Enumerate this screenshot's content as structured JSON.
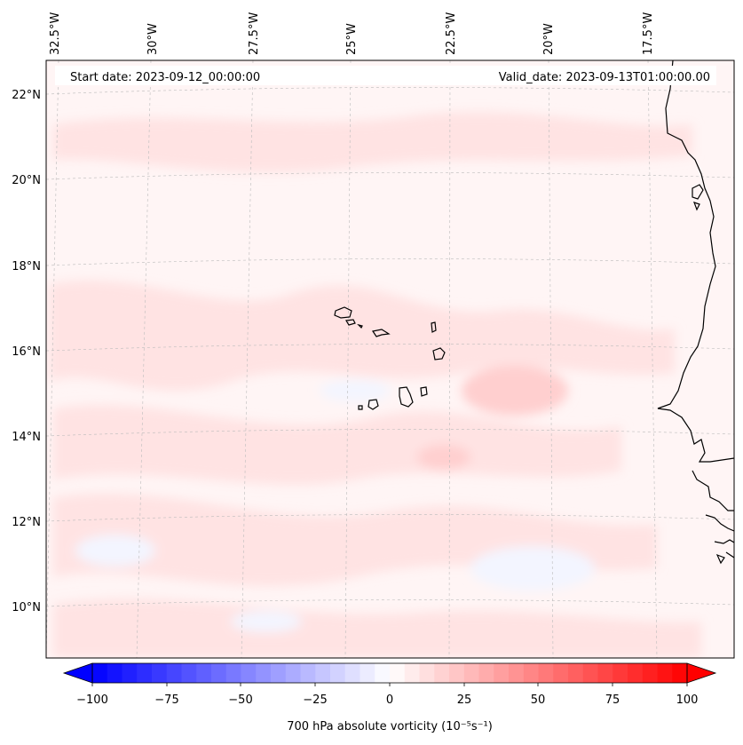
{
  "header": {
    "start_date": "Start date: 2023-09-12_00:00:00",
    "valid_date": "Valid_date: 2023-09-13T01:00:00.00"
  },
  "longitude_labels": [
    "32.5°W",
    "30°W",
    "27.5°W",
    "25°W",
    "22.5°W",
    "20°W",
    "17.5°W"
  ],
  "latitude_labels": [
    "22°N",
    "20°N",
    "18°N",
    "16°N",
    "14°N",
    "12°N",
    "10°N"
  ],
  "colorbar": {
    "ticks": [
      "−100",
      "−75",
      "−50",
      "−25",
      "0",
      "25",
      "50",
      "75",
      "100"
    ],
    "min": -100,
    "max": 100,
    "step": 5,
    "label": "700 hPa absolute vorticity (10⁻⁵s⁻¹)",
    "colormap": "bwr",
    "low_color": "#0000ff",
    "mid_color": "#ffffff",
    "high_color": "#ff0000"
  },
  "field": {
    "background_color": "#fff5f5",
    "positive_color": "#ffe3e3",
    "strong_positive_color": "#ffcfcf",
    "negative_color": "#f3f5ff"
  },
  "coast_color": "#000000"
}
